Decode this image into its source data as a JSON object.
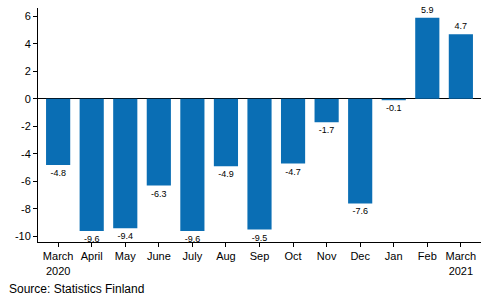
{
  "chart_data": {
    "type": "bar",
    "categories": [
      "March\n2020",
      "April",
      "May",
      "June",
      "July",
      "Aug",
      "Sep",
      "Oct",
      "Nov",
      "Dec",
      "Jan",
      "Feb",
      "March\n2021"
    ],
    "values": [
      -4.8,
      -9.6,
      -9.4,
      -6.3,
      -9.6,
      -4.9,
      -9.5,
      -4.7,
      -1.7,
      -7.6,
      -0.1,
      5.9,
      4.7
    ],
    "color": "#0a6eb4",
    "ylim": [
      -10.4,
      6.6
    ],
    "yticks": [
      -10,
      -8,
      -6,
      -4,
      -2,
      0,
      2,
      4,
      6
    ],
    "grid": false,
    "data_labels": true,
    "source": "Source: Statistics Finland"
  }
}
